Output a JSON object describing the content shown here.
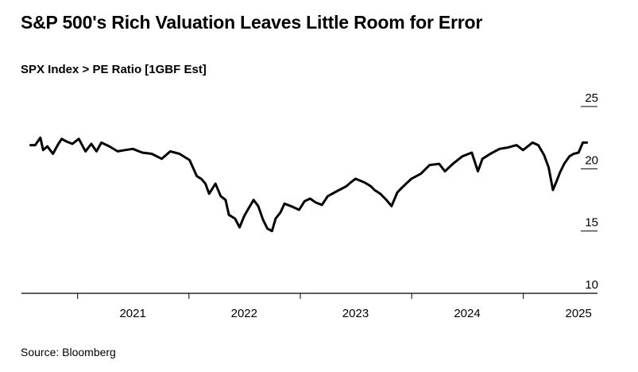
{
  "header": {
    "title": "S&P 500's Rich Valuation Leaves Little Room for Error",
    "subtitle": "SPX Index > PE Ratio [1GBF Est]"
  },
  "footer": {
    "source": "Source: Bloomberg"
  },
  "chart_data": {
    "type": "line",
    "title": "S&P 500's Rich Valuation Leaves Little Room for Error",
    "subtitle": "SPX Index > PE Ratio [1GBF Est]",
    "xlabel": "",
    "ylabel": "",
    "x_ticks": [
      "2021",
      "2022",
      "2023",
      "2024",
      "2025"
    ],
    "y_ticks": [
      10,
      15,
      20,
      25
    ],
    "ylim": [
      10,
      25
    ],
    "xlim": [
      "2020-07-01",
      "2025-09-01"
    ],
    "grid": false,
    "legend": "none",
    "line_color": "#000000",
    "series": [
      {
        "x": [
          "2020-07-31",
          "2020-08-15",
          "2020-09-01",
          "2020-09-10",
          "2020-09-24",
          "2020-10-12",
          "2020-10-30",
          "2020-11-10",
          "2020-11-25",
          "2020-12-15",
          "2021-01-05",
          "2021-01-27",
          "2021-02-15",
          "2021-03-04",
          "2021-03-20",
          "2021-04-15",
          "2021-05-12",
          "2021-06-05",
          "2021-07-01",
          "2021-08-01",
          "2021-09-01",
          "2021-10-04",
          "2021-11-01",
          "2021-12-01",
          "2022-01-03",
          "2022-01-27",
          "2022-02-10",
          "2022-02-24",
          "2022-03-08",
          "2022-03-29",
          "2022-04-15",
          "2022-05-01",
          "2022-05-12",
          "2022-06-01",
          "2022-06-16",
          "2022-07-01",
          "2022-07-15",
          "2022-08-01",
          "2022-08-16",
          "2022-09-01",
          "2022-09-15",
          "2022-09-30",
          "2022-10-12",
          "2022-10-28",
          "2022-11-10",
          "2022-12-01",
          "2022-12-28",
          "2023-01-15",
          "2023-02-02",
          "2023-02-20",
          "2023-03-13",
          "2023-04-01",
          "2023-05-01",
          "2023-06-01",
          "2023-06-15",
          "2023-07-01",
          "2023-07-31",
          "2023-08-20",
          "2023-09-01",
          "2023-09-20",
          "2023-10-10",
          "2023-10-27",
          "2023-11-15",
          "2023-12-01",
          "2023-12-31",
          "2024-01-31",
          "2024-02-29",
          "2024-03-31",
          "2024-04-19",
          "2024-05-15",
          "2024-06-15",
          "2024-07-16",
          "2024-08-05",
          "2024-08-20",
          "2024-09-15",
          "2024-10-15",
          "2024-11-10",
          "2024-12-10",
          "2024-12-31",
          "2025-01-31",
          "2025-02-19",
          "2025-03-10",
          "2025-03-25",
          "2025-04-08",
          "2025-04-20",
          "2025-05-01",
          "2025-05-15",
          "2025-06-01",
          "2025-06-15",
          "2025-07-01",
          "2025-07-15",
          "2025-07-28"
        ],
        "values": [
          21.9,
          21.9,
          22.5,
          21.5,
          21.8,
          21.2,
          22.0,
          22.4,
          22.2,
          22.0,
          22.4,
          21.4,
          22.0,
          21.4,
          22.1,
          21.8,
          21.4,
          21.5,
          21.6,
          21.3,
          21.2,
          20.8,
          21.4,
          21.2,
          20.7,
          19.4,
          19.2,
          18.8,
          18.0,
          18.8,
          17.8,
          17.5,
          16.3,
          16.0,
          15.3,
          16.2,
          16.8,
          17.5,
          17.0,
          15.9,
          15.2,
          15.0,
          16.0,
          16.5,
          17.2,
          17.0,
          16.7,
          17.4,
          17.6,
          17.3,
          17.1,
          17.8,
          18.2,
          18.6,
          18.9,
          19.2,
          18.9,
          18.6,
          18.3,
          18.0,
          17.5,
          17.0,
          18.1,
          18.5,
          19.2,
          19.6,
          20.3,
          20.4,
          19.8,
          20.4,
          21.0,
          21.3,
          19.8,
          20.8,
          21.2,
          21.6,
          21.7,
          21.9,
          21.5,
          22.1,
          21.9,
          21.1,
          20.1,
          18.3,
          19.0,
          19.7,
          20.4,
          21.0,
          21.2,
          21.3,
          22.1,
          22.1
        ]
      }
    ]
  }
}
